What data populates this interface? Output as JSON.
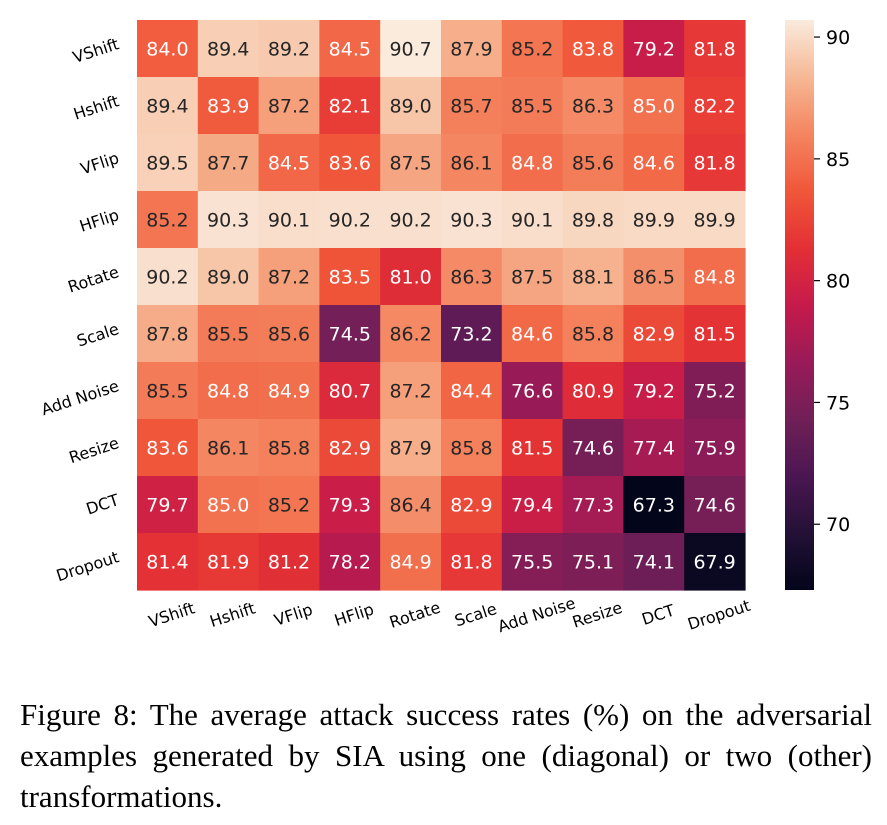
{
  "chart_data": {
    "type": "heatmap",
    "rows": [
      "VShift",
      "Hshift",
      "VFlip",
      "HFlip",
      "Rotate",
      "Scale",
      "Add Noise",
      "Resize",
      "DCT",
      "Dropout"
    ],
    "columns": [
      "VShift",
      "Hshift",
      "VFlip",
      "HFlip",
      "Rotate",
      "Scale",
      "Add Noise",
      "Resize",
      "DCT",
      "Dropout"
    ],
    "values": [
      [
        84.0,
        89.4,
        89.2,
        84.5,
        90.7,
        87.9,
        85.2,
        83.8,
        79.2,
        81.8
      ],
      [
        89.4,
        83.9,
        87.2,
        82.1,
        89.0,
        85.7,
        85.5,
        86.3,
        85.0,
        82.2
      ],
      [
        89.5,
        87.7,
        84.5,
        83.6,
        87.5,
        86.1,
        84.8,
        85.6,
        84.6,
        81.8
      ],
      [
        85.2,
        90.3,
        90.1,
        90.2,
        90.2,
        90.3,
        90.1,
        89.8,
        89.9,
        89.9
      ],
      [
        90.2,
        89.0,
        87.2,
        83.5,
        81.0,
        86.3,
        87.5,
        88.1,
        86.5,
        84.8
      ],
      [
        87.8,
        85.5,
        85.6,
        74.5,
        86.2,
        73.2,
        84.6,
        85.8,
        82.9,
        81.5
      ],
      [
        85.5,
        84.8,
        84.9,
        80.7,
        87.2,
        84.4,
        76.6,
        80.9,
        79.2,
        75.2
      ],
      [
        83.6,
        86.1,
        85.8,
        82.9,
        87.9,
        85.8,
        81.5,
        74.6,
        77.4,
        75.9
      ],
      [
        79.7,
        85.0,
        85.2,
        79.3,
        86.4,
        82.9,
        79.4,
        77.3,
        67.3,
        74.6
      ],
      [
        81.4,
        81.9,
        81.2,
        78.2,
        84.9,
        81.8,
        75.5,
        75.1,
        74.1,
        67.9
      ]
    ],
    "colorbar": {
      "min": 67.3,
      "max": 90.7,
      "ticks": [
        70,
        75,
        80,
        85,
        90
      ],
      "colormap": "rocket"
    },
    "xlabel": "",
    "ylabel": "",
    "title": ""
  },
  "caption": "Figure 8: The average attack success rates (%) on the adversarial examples generated by SIA using one (diagonal) or two (other) transformations."
}
